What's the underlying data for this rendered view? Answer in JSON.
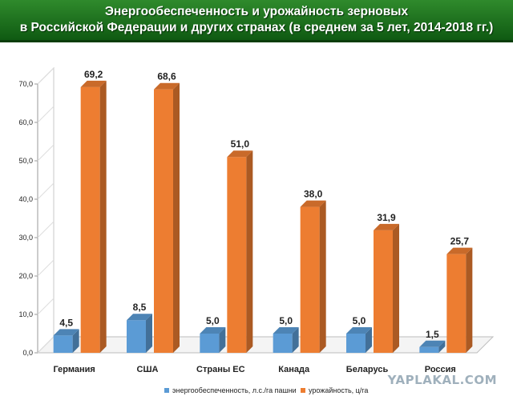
{
  "header": {
    "title_line1": "Энергообеспеченность и урожайность зерновых",
    "title_line2": "в Российской Федерации и других странах (в среднем за 5 лет, 2014-2018 гг.)"
  },
  "watermark": "YAPLAKAL.COM",
  "chart_data": {
    "type": "bar",
    "title": "Энергообеспеченность и урожайность зерновых в Российской Федерации и других странах (в среднем за 5 лет, 2014-2018 гг.)",
    "categories": [
      "Германия",
      "США",
      "Страны ЕС",
      "Канада",
      "Беларусь",
      "Россия"
    ],
    "series": [
      {
        "name": "энергообеспеченность, л.с./га пашни",
        "values": [
          4.5,
          8.5,
          5.0,
          5.0,
          5.0,
          1.5
        ],
        "labels": [
          "4,5",
          "8,5",
          "5,0",
          "5,0",
          "5,0",
          "1,5"
        ],
        "color": "#5b9bd5"
      },
      {
        "name": "урожайность, ц/га",
        "values": [
          69.2,
          68.6,
          51.0,
          38.0,
          31.9,
          25.7
        ],
        "labels": [
          "69,2",
          "68,6",
          "51,0",
          "38,0",
          "31,9",
          "25,7"
        ],
        "color": "#ed7d31"
      }
    ],
    "yticks": [
      "0,0",
      "10,0",
      "20,0",
      "30,0",
      "40,0",
      "50,0",
      "60,0",
      "70,0"
    ],
    "ylim": [
      0,
      70
    ],
    "grid": false,
    "legend": "bottom",
    "style": "3d-bar"
  }
}
